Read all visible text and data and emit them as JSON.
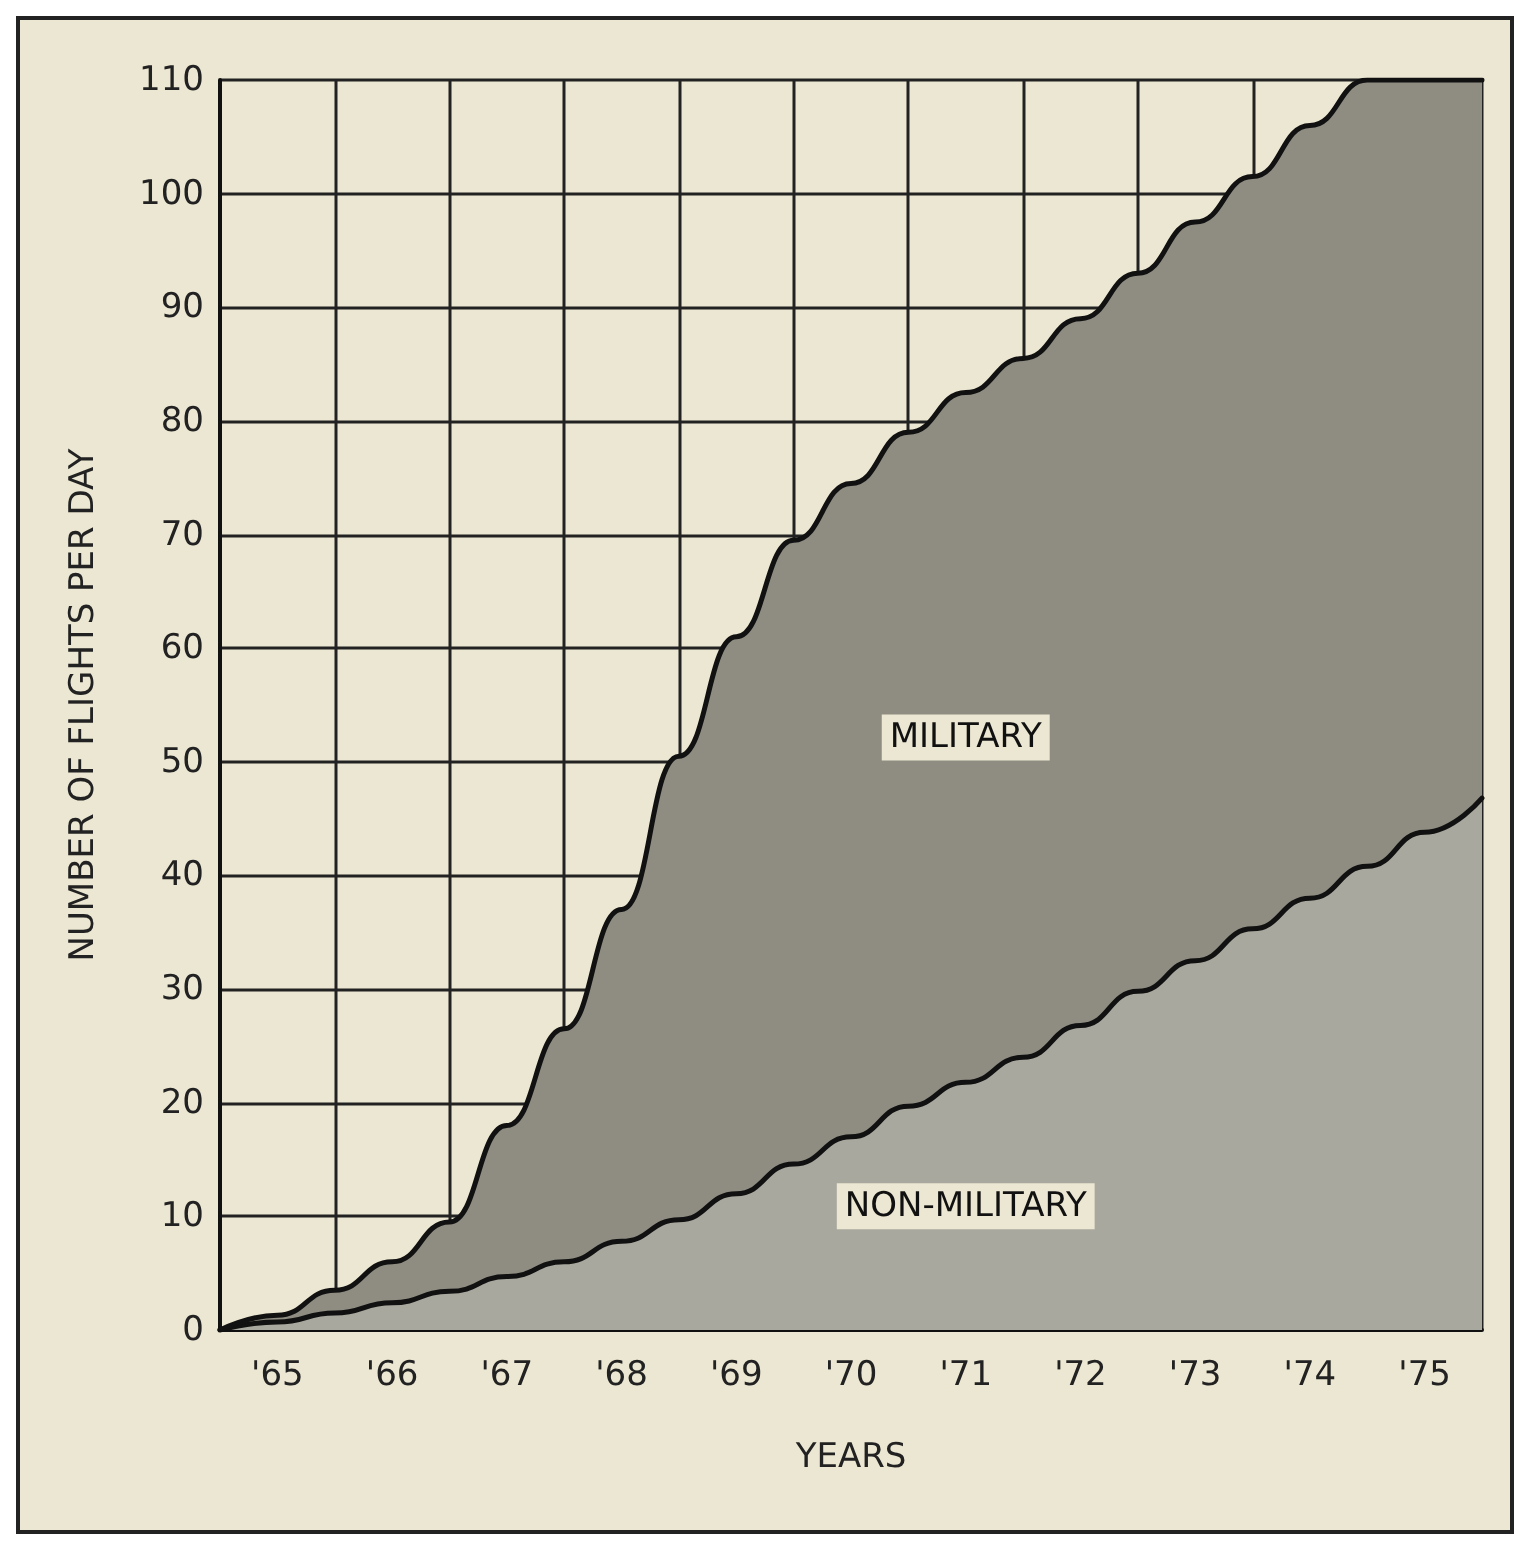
{
  "chart_data": {
    "type": "area",
    "xlabel": "YEARS",
    "ylabel": "NUMBER OF FLIGHTS PER DAY",
    "stacked": true,
    "categories": [
      null,
      "'65",
      null,
      "'66",
      null,
      "'67",
      null,
      "'68",
      null,
      "'69",
      null,
      "'70",
      null,
      "'71",
      null,
      "'72",
      null,
      "'73",
      null,
      "'74",
      null,
      "'75",
      null
    ],
    "series": [
      {
        "name": "NON-MILITARY",
        "color": "#a9a89e",
        "values": [
          0,
          0.7,
          1.5,
          2.4,
          3.4,
          4.7,
          6,
          7.8,
          9.7,
          12,
          14.6,
          17,
          19.7,
          21.8,
          24,
          26.8,
          29.8,
          32.5,
          35.3,
          38,
          40.8,
          43.8,
          46.8
        ]
      },
      {
        "name": "MILITARY",
        "color": "#8f8d82",
        "values": [
          0,
          0.6,
          2,
          3.6,
          6.1,
          13.3,
          20.5,
          29.2,
          40.8,
          49,
          54.9,
          57.5,
          59.3,
          60.7,
          61.5,
          62.2,
          63.2,
          65,
          66.2,
          68,
          69.2,
          66.2,
          63.2
        ]
      }
    ],
    "ylim": [
      0,
      110
    ],
    "yticks": [
      0,
      10,
      20,
      30,
      40,
      50,
      60,
      70,
      80,
      90,
      100,
      110
    ],
    "grid": true,
    "legend": false
  }
}
